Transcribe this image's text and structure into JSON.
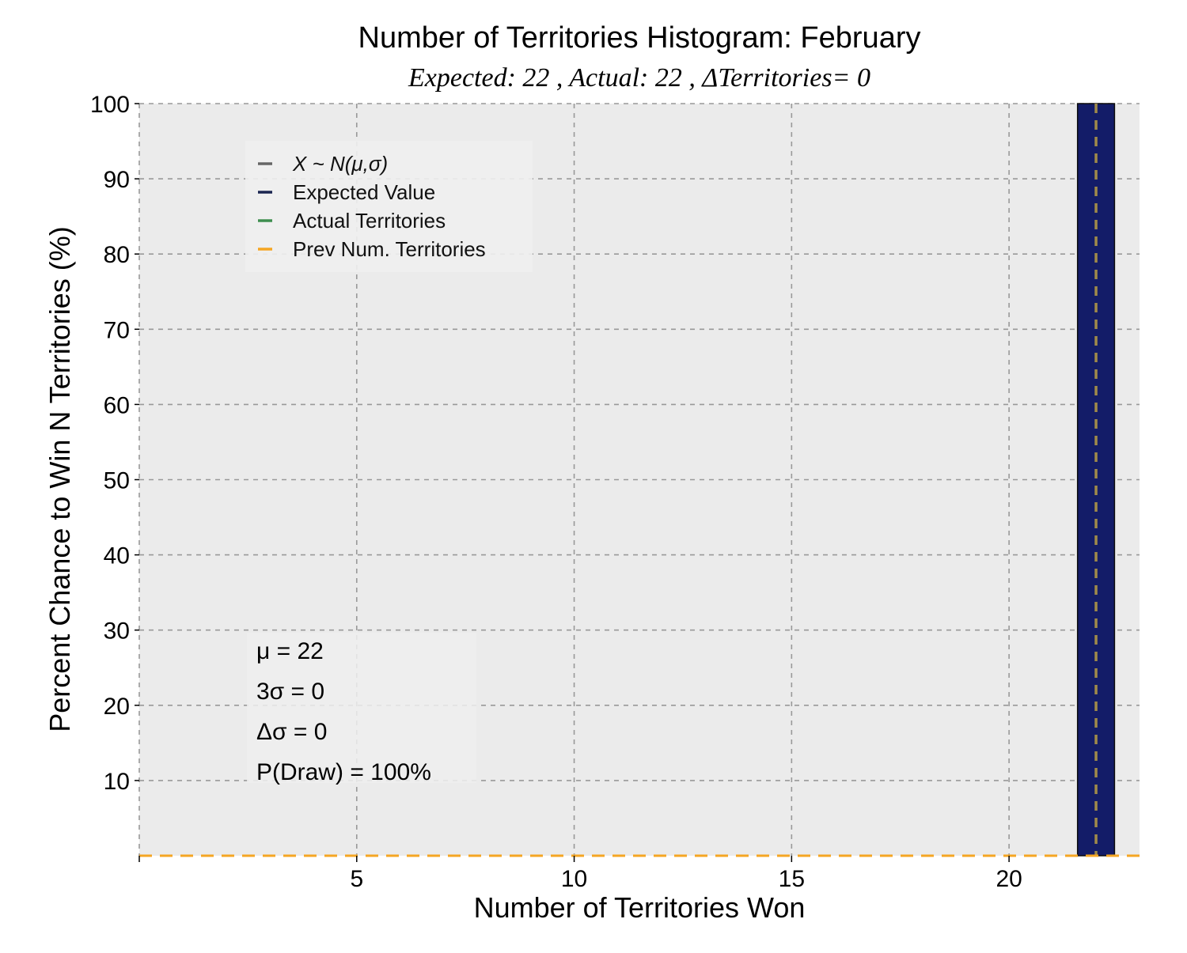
{
  "colors": {
    "plot_bg": "#ebebeb",
    "grid": "#999999",
    "bar_fill": "#131c68",
    "bar_edge": "#0d0d0d",
    "normal_curve": "#666666",
    "expected": "#1a2550",
    "actual": "#3e8e4f",
    "prev": "#f5a623",
    "mean_line": "#a08a4a"
  },
  "chart_data": {
    "type": "bar",
    "title": "Number of Territories Histogram: February",
    "subtitle": "Expected: 22 , Actual: 22 , ΔTerritories= 0",
    "xlabel": "Number of Territories Won",
    "ylabel": "Percent Chance to Win N Territories (%)",
    "xlim": [
      0,
      23
    ],
    "ylim": [
      0,
      100
    ],
    "xticks": [
      5,
      10,
      15,
      20
    ],
    "yticks": [
      10,
      20,
      30,
      40,
      50,
      60,
      70,
      80,
      90,
      100
    ],
    "x": [
      22
    ],
    "values": [
      100
    ],
    "bar_width": 0.85,
    "expected_value": 22,
    "actual_value": 22,
    "prev_num_territories_y": 0,
    "grid": true,
    "grid_style": "dashed",
    "legend": {
      "position": "upper-left",
      "entries": [
        {
          "label": "X ~ N(μ,σ)",
          "color": "#666666",
          "italic": true
        },
        {
          "label": "Expected Value",
          "color": "#1a2550",
          "italic": false
        },
        {
          "label": "Actual Territories",
          "color": "#3e8e4f",
          "italic": false
        },
        {
          "label": "Prev Num. Territories",
          "color": "#f5a623",
          "italic": false
        }
      ]
    },
    "stats": {
      "position": "lower-left",
      "lines": [
        "μ = 22",
        "3σ = 0",
        "Δσ = 0",
        "P(Draw) = 100%"
      ]
    }
  }
}
